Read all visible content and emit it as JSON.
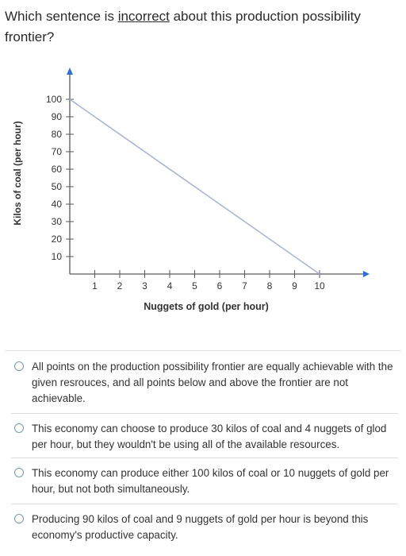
{
  "question": {
    "prefix": "Which sentence is ",
    "emphasis": "incorrect",
    "suffix": " about this production possibility frontier?"
  },
  "chart_data": {
    "type": "line",
    "xlabel": "Nuggets of gold (per hour)",
    "ylabel": "Kilos of coal (per hour)",
    "x_ticks": [
      1,
      2,
      3,
      4,
      5,
      6,
      7,
      8,
      9,
      10
    ],
    "y_ticks": [
      10,
      20,
      30,
      40,
      50,
      60,
      70,
      80,
      90,
      100
    ],
    "xlim": [
      0,
      10
    ],
    "ylim": [
      0,
      100
    ],
    "grid": false,
    "series": [
      {
        "x": [
          0,
          10
        ],
        "y": [
          100,
          0
        ]
      }
    ],
    "line_color": "#a9b7d6",
    "axis_color": "#5a5a5a",
    "arrow_color": "#2d6fd6"
  },
  "options": [
    {
      "text": "All points on the production possibility frontier are equally achievable with the given resrouces, and all points below and above the frontier are not achievable."
    },
    {
      "text": "This economy can choose to produce 30 kilos of coal and 4 nuggets of glod per hour, but they wouldn't be using all of the available resources."
    },
    {
      "text": "This economy can produce either 100 kilos of coal or 10 nuggets of gold per hour, but not both simultaneously."
    },
    {
      "text": "Producing 90 kilos of coal and 9 nuggets of gold per hour is beyond this economy's productive capacity."
    }
  ]
}
